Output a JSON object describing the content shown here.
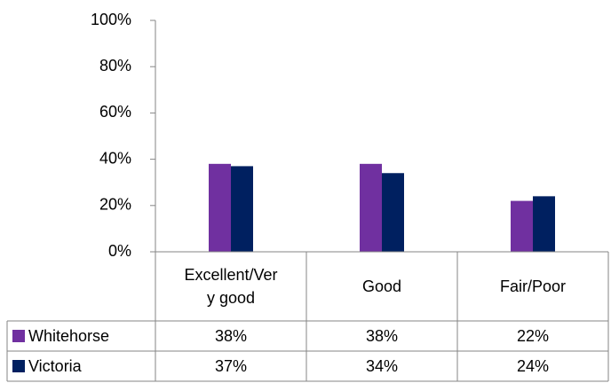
{
  "chart_data": {
    "type": "bar",
    "categories": [
      "Excellent/Very good",
      "Good",
      "Fair/Poor"
    ],
    "series": [
      {
        "name": "Whitehorse",
        "color": "#7030a0",
        "values": [
          38,
          38,
          22
        ],
        "value_labels": [
          "38%",
          "38%",
          "22%"
        ]
      },
      {
        "name": "Victoria",
        "color": "#002060",
        "values": [
          37,
          34,
          24
        ],
        "value_labels": [
          "37%",
          "34%",
          "24%"
        ]
      }
    ],
    "ylim": [
      0,
      100
    ],
    "yticks": [
      {
        "value": 0,
        "label": "0%"
      },
      {
        "value": 20,
        "label": "20%"
      },
      {
        "value": 40,
        "label": "40%"
      },
      {
        "value": 60,
        "label": "60%"
      },
      {
        "value": 80,
        "label": "80%"
      },
      {
        "value": 100,
        "label": "100%"
      }
    ],
    "grid": false
  }
}
